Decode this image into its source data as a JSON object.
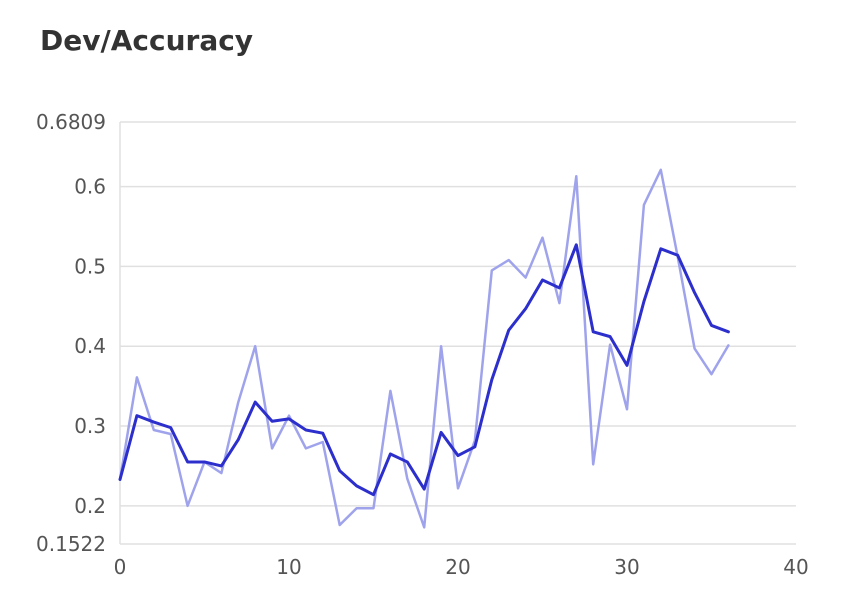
{
  "chart_data": {
    "type": "line",
    "title": "Dev/Accuracy",
    "xlabel": "",
    "ylabel": "",
    "xlim": [
      0,
      40
    ],
    "ylim": [
      0.1522,
      0.6809
    ],
    "xticks": [
      "0",
      "10",
      "20",
      "30",
      "40"
    ],
    "yticks": [
      "0.1522",
      "0.2",
      "0.3",
      "0.4",
      "0.5",
      "0.6",
      "0.6809"
    ],
    "grid": true,
    "x": [
      0,
      1,
      2,
      3,
      4,
      5,
      6,
      7,
      8,
      9,
      10,
      11,
      12,
      13,
      14,
      15,
      16,
      17,
      18,
      19,
      20,
      21,
      22,
      23,
      24,
      25,
      26,
      27,
      28,
      29,
      30,
      31,
      32,
      33,
      34,
      35,
      36
    ],
    "series": [
      {
        "role": "raw",
        "color": "#9fa3ec",
        "values": [
          0.233,
          0.361,
          0.295,
          0.29,
          0.2,
          0.255,
          0.241,
          0.33,
          0.4,
          0.272,
          0.313,
          0.272,
          0.28,
          0.176,
          0.197,
          0.197,
          0.344,
          0.234,
          0.173,
          0.4,
          0.222,
          0.282,
          0.495,
          0.508,
          0.486,
          0.536,
          0.454,
          0.613,
          0.252,
          0.402,
          0.321,
          0.577,
          0.621,
          0.512,
          0.397,
          0.365,
          0.401
        ]
      },
      {
        "role": "smoothed",
        "color": "#2c2fcc",
        "values": [
          0.233,
          0.313,
          0.305,
          0.298,
          0.255,
          0.255,
          0.25,
          0.283,
          0.33,
          0.306,
          0.309,
          0.295,
          0.291,
          0.244,
          0.225,
          0.214,
          0.265,
          0.255,
          0.221,
          0.292,
          0.263,
          0.274,
          0.358,
          0.42,
          0.447,
          0.483,
          0.473,
          0.527,
          0.418,
          0.412,
          0.376,
          0.456,
          0.522,
          0.514,
          0.467,
          0.426,
          0.418
        ]
      }
    ]
  }
}
